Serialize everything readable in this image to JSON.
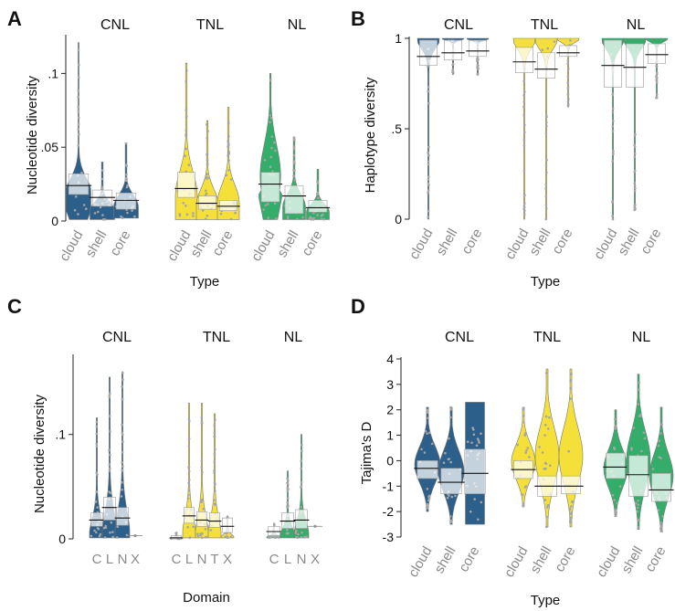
{
  "colors": {
    "CNL": "#2c5f8a",
    "TNL": "#f5e03a",
    "NL": "#34ad6b",
    "jitter": "#9a9a9a"
  },
  "chart_data": [
    {
      "panel": "A",
      "type": "violin",
      "ylabel": "Nucleotide diversity",
      "xlabel": "Type",
      "yticks": [
        0,
        0.05,
        0.1
      ],
      "ytick_labels": [
        "0",
        ".05",
        ".1"
      ],
      "ylim": [
        0,
        0.125
      ],
      "groups": [
        {
          "name": "CNL",
          "categories": [
            {
              "label": "cloud",
              "median": 0.024,
              "q1": 0.018,
              "q3": 0.032,
              "min": 0.001,
              "max": 0.121,
              "shape": "A-CNL-cloud"
            },
            {
              "label": "shell",
              "median": 0.016,
              "q1": 0.01,
              "q3": 0.021,
              "min": 0.001,
              "max": 0.04,
              "shape": "A-CNL-shell"
            },
            {
              "label": "core",
              "median": 0.014,
              "q1": 0.008,
              "q3": 0.019,
              "min": 0.002,
              "max": 0.053,
              "shape": "A-CNL-core"
            }
          ]
        },
        {
          "name": "TNL",
          "categories": [
            {
              "label": "cloud",
              "median": 0.022,
              "q1": 0.016,
              "q3": 0.033,
              "min": 0.001,
              "max": 0.107,
              "shape": "A-TNL-cloud"
            },
            {
              "label": "shell",
              "median": 0.012,
              "q1": 0.008,
              "q3": 0.017,
              "min": 0.001,
              "max": 0.068,
              "shape": "A-TNL-shell"
            },
            {
              "label": "core",
              "median": 0.01,
              "q1": 0.007,
              "q3": 0.014,
              "min": 0.001,
              "max": 0.077,
              "shape": "A-TNL-core"
            }
          ]
        },
        {
          "name": "NL",
          "categories": [
            {
              "label": "cloud",
              "median": 0.025,
              "q1": 0.013,
              "q3": 0.033,
              "min": 0.001,
              "max": 0.1,
              "shape": "A-NL-cloud"
            },
            {
              "label": "shell",
              "median": 0.017,
              "q1": 0.005,
              "q3": 0.024,
              "min": 0.001,
              "max": 0.057,
              "shape": "A-NL-shell"
            },
            {
              "label": "core",
              "median": 0.009,
              "q1": 0.006,
              "q3": 0.014,
              "min": 0.001,
              "max": 0.035,
              "shape": "A-NL-core"
            }
          ]
        }
      ]
    },
    {
      "panel": "B",
      "type": "violin",
      "ylabel": "Haplotype diversity",
      "xlabel": "Type",
      "yticks": [
        0,
        0.5,
        1
      ],
      "ytick_labels": [
        "0",
        ".5",
        "1"
      ],
      "ylim": [
        0,
        1
      ],
      "groups": [
        {
          "name": "CNL",
          "categories": [
            {
              "label": "cloud",
              "median": 0.9,
              "q1": 0.85,
              "q3": 0.99,
              "min": 0.0,
              "max": 1.0,
              "shape": "B-top"
            },
            {
              "label": "shell",
              "median": 0.92,
              "q1": 0.88,
              "q3": 0.99,
              "min": 0.8,
              "max": 1.0,
              "shape": "B-top"
            },
            {
              "label": "core",
              "median": 0.93,
              "q1": 0.9,
              "q3": 0.99,
              "min": 0.8,
              "max": 1.0,
              "shape": "B-top"
            }
          ]
        },
        {
          "name": "TNL",
          "categories": [
            {
              "label": "cloud",
              "median": 0.87,
              "q1": 0.81,
              "q3": 0.95,
              "min": 0.0,
              "max": 1.0,
              "shape": "B-top"
            },
            {
              "label": "shell",
              "median": 0.83,
              "q1": 0.78,
              "q3": 0.92,
              "min": 0.0,
              "max": 1.0,
              "shape": "B-top"
            },
            {
              "label": "core",
              "median": 0.92,
              "q1": 0.9,
              "q3": 0.96,
              "min": 0.62,
              "max": 1.0,
              "shape": "B-top"
            }
          ]
        },
        {
          "name": "NL",
          "categories": [
            {
              "label": "cloud",
              "median": 0.85,
              "q1": 0.73,
              "q3": 0.99,
              "min": 0.0,
              "max": 1.0,
              "shape": "B-top"
            },
            {
              "label": "shell",
              "median": 0.84,
              "q1": 0.73,
              "q3": 0.97,
              "min": 0.05,
              "max": 1.0,
              "shape": "B-top"
            },
            {
              "label": "core",
              "median": 0.91,
              "q1": 0.86,
              "q3": 0.97,
              "min": 0.67,
              "max": 1.0,
              "shape": "B-top"
            }
          ]
        }
      ]
    },
    {
      "panel": "C",
      "type": "violin",
      "ylabel": "Nucleotide diversity",
      "xlabel": "Domain",
      "yticks": [
        0,
        0.1
      ],
      "ytick_labels": [
        "0",
        ".1"
      ],
      "ylim": [
        0,
        0.175
      ],
      "groups": [
        {
          "name": "CNL",
          "categories": [
            {
              "label": "C",
              "median": 0.018,
              "q1": 0.012,
              "q3": 0.025,
              "min": 0.001,
              "max": 0.116,
              "shape": "C"
            },
            {
              "label": "L",
              "median": 0.03,
              "q1": 0.018,
              "q3": 0.04,
              "min": 0.001,
              "max": 0.155,
              "shape": "C"
            },
            {
              "label": "N",
              "median": 0.02,
              "q1": 0.013,
              "q3": 0.03,
              "min": 0.001,
              "max": 0.16,
              "shape": "C"
            },
            {
              "label": "X",
              "median": 0.003,
              "q1": 0.002,
              "q3": 0.004,
              "min": 0.0,
              "max": 0.006,
              "shape": "dot"
            }
          ]
        },
        {
          "name": "TNL",
          "categories": [
            {
              "label": "C",
              "median": 0.001,
              "q1": 0.0,
              "q3": 0.003,
              "min": 0.0,
              "max": 0.006,
              "shape": "C"
            },
            {
              "label": "L",
              "median": 0.022,
              "q1": 0.015,
              "q3": 0.03,
              "min": 0.001,
              "max": 0.13,
              "shape": "C"
            },
            {
              "label": "N",
              "median": 0.018,
              "q1": 0.012,
              "q3": 0.026,
              "min": 0.001,
              "max": 0.13,
              "shape": "C"
            },
            {
              "label": "T",
              "median": 0.017,
              "q1": 0.011,
              "q3": 0.025,
              "min": 0.001,
              "max": 0.12,
              "shape": "C"
            },
            {
              "label": "X",
              "median": 0.012,
              "q1": 0.006,
              "q3": 0.02,
              "min": 0.001,
              "max": 0.022,
              "shape": "C"
            }
          ]
        },
        {
          "name": "NL",
          "categories": [
            {
              "label": "C",
              "median": 0.007,
              "q1": 0.003,
              "q3": 0.012,
              "min": 0.001,
              "max": 0.015,
              "shape": "C"
            },
            {
              "label": "L",
              "median": 0.017,
              "q1": 0.01,
              "q3": 0.025,
              "min": 0.001,
              "max": 0.065,
              "shape": "C"
            },
            {
              "label": "N",
              "median": 0.018,
              "q1": 0.01,
              "q3": 0.028,
              "min": 0.001,
              "max": 0.1,
              "shape": "C"
            },
            {
              "label": "X",
              "median": 0.012,
              "q1": 0.011,
              "q3": 0.013,
              "min": 0.01,
              "max": 0.014,
              "shape": "dot"
            }
          ]
        }
      ]
    },
    {
      "panel": "D",
      "type": "violin",
      "ylabel": "Tajima's D",
      "xlabel": "Type",
      "yticks": [
        -3,
        -2,
        -1,
        0,
        1,
        2,
        3,
        4
      ],
      "ytick_labels": [
        "-3",
        "-2",
        "-1",
        "0",
        "1",
        "2",
        "3",
        "4"
      ],
      "ylim": [
        -3,
        4
      ],
      "groups": [
        {
          "name": "CNL",
          "categories": [
            {
              "label": "cloud",
              "median": -0.3,
              "q1": -0.7,
              "q3": 0.0,
              "min": -2.0,
              "max": 2.1,
              "shape": "D-mid"
            },
            {
              "label": "shell",
              "median": -0.85,
              "q1": -1.3,
              "q3": -0.3,
              "min": -2.5,
              "max": 2.1,
              "shape": "D-mid"
            },
            {
              "label": "core",
              "median": -0.5,
              "q1": -1.3,
              "q3": 0.45,
              "min": -2.5,
              "max": 2.3,
              "shape": "D-flat"
            }
          ]
        },
        {
          "name": "TNL",
          "categories": [
            {
              "label": "cloud",
              "median": -0.35,
              "q1": -0.7,
              "q3": 0.0,
              "min": -1.8,
              "max": 2.1,
              "shape": "D-mid"
            },
            {
              "label": "shell",
              "median": -1.0,
              "q1": -1.4,
              "q3": -0.6,
              "min": -2.6,
              "max": 3.6,
              "shape": "D-mid"
            },
            {
              "label": "core",
              "median": -1.0,
              "q1": -1.3,
              "q3": -0.6,
              "min": -2.6,
              "max": 3.6,
              "shape": "D-mid"
            }
          ]
        },
        {
          "name": "NL",
          "categories": [
            {
              "label": "cloud",
              "median": -0.25,
              "q1": -0.7,
              "q3": 0.3,
              "min": -2.2,
              "max": 2.0,
              "shape": "D-mid"
            },
            {
              "label": "shell",
              "median": -0.55,
              "q1": -1.4,
              "q3": 0.2,
              "min": -2.7,
              "max": 3.4,
              "shape": "D-mid"
            },
            {
              "label": "core",
              "median": -1.15,
              "q1": -1.6,
              "q3": -0.5,
              "min": -2.8,
              "max": 2.1,
              "shape": "D-mid"
            }
          ]
        }
      ]
    }
  ]
}
